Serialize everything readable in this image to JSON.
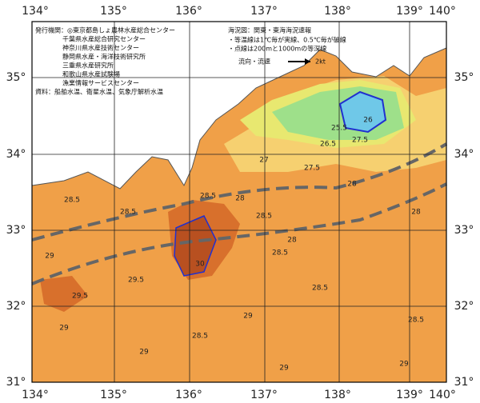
{
  "longitude_labels": [
    "134°",
    "135°",
    "136°",
    "137°",
    "138°",
    "139°",
    "140°"
  ],
  "latitude_labels": [
    "35°",
    "34°",
    "33°",
    "32°",
    "31°"
  ],
  "publisher": {
    "heading": "発行機関：◎東京都島しょ農林水産総合センター",
    "members": [
      "千葉県水産総合研究センター",
      "神奈川県水産技術センター",
      "静岡県水産・海洋技術研究所",
      "三重県水産研究所",
      "和歌山県水産試験場",
      "漁業情報サービスセンター"
    ]
  },
  "source": "資料：船舶水温、衛星水温、気象庁解析水温",
  "legend": {
    "title": "海況図：関東・東海海況速報",
    "notes": [
      "・等温線は1℃毎が実線、0.5℃毎が破線",
      "・点線は200mと1000mの等深線"
    ],
    "current_label": "流向・流速",
    "current_scale": "2kt"
  },
  "contour_labels": [
    "25.5",
    "26",
    "26.5",
    "27",
    "27.5",
    "27.5",
    "28",
    "28",
    "28",
    "28.5",
    "28.5",
    "28.5",
    "28.5",
    "28.5",
    "28.5",
    "28.5",
    "29",
    "29",
    "29",
    "29",
    "29",
    "29.5",
    "29.5",
    "30",
    "28.5",
    "28",
    "29"
  ]
}
